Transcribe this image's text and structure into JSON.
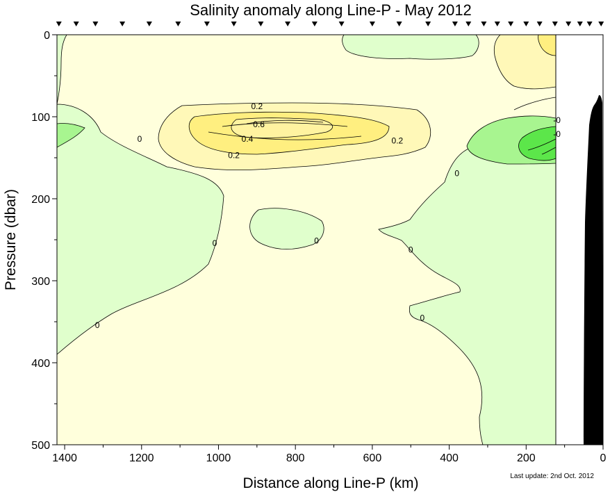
{
  "chart_data": {
    "type": "heatmap",
    "title": "Salinity anomaly along Line-P - May 2012",
    "xlabel": "Distance along Line-P (km)",
    "ylabel": "Pressure (dbar)",
    "footnote": "Last update: 2nd Oct. 2012",
    "xlim": [
      1420,
      0
    ],
    "ylim": [
      500,
      0
    ],
    "x_ticks": [
      1400,
      1200,
      1000,
      800,
      600,
      400,
      200,
      0
    ],
    "y_ticks": [
      0,
      100,
      200,
      300,
      400,
      500
    ],
    "stations_km": [
      1415,
      1370,
      1320,
      1250,
      1180,
      1105,
      1030,
      960,
      890,
      820,
      750,
      680,
      600,
      530,
      455,
      385,
      350,
      310,
      275,
      240,
      200,
      165,
      125,
      90,
      60,
      35,
      5
    ],
    "data_limit_km": 125,
    "colors": {
      "negative_low": "#e0ffcc",
      "negative_mid": "#a8f590",
      "negative_strong": "#5ce64a",
      "neutral": "#ffffdc",
      "positive_low": "#fff8b8",
      "positive_mid": "#ffef80",
      "bathymetry": "#000000",
      "outline": "#000000"
    },
    "contour_levels": [
      {
        "level": "-0",
        "position_km": 120,
        "position_dbar": 105
      },
      {
        "level": "-0",
        "position_km": 120,
        "position_dbar": 122
      },
      {
        "level": "0.2",
        "position_km": 900,
        "position_dbar": 88
      },
      {
        "level": "0.6",
        "position_km": 895,
        "position_dbar": 110
      },
      {
        "level": "0.4",
        "position_km": 925,
        "position_dbar": 128
      },
      {
        "level": "0.2",
        "position_km": 960,
        "position_dbar": 148
      },
      {
        "level": "0.2",
        "position_km": 535,
        "position_dbar": 130
      },
      {
        "level": "0",
        "position_km": 1205,
        "position_dbar": 128
      },
      {
        "level": "0",
        "position_km": 380,
        "position_dbar": 170
      },
      {
        "level": "0",
        "position_km": 1010,
        "position_dbar": 255
      },
      {
        "level": "0",
        "position_km": 745,
        "position_dbar": 252
      },
      {
        "level": "0",
        "position_km": 500,
        "position_dbar": 263
      },
      {
        "level": "0",
        "position_km": 1315,
        "position_dbar": 355
      },
      {
        "level": "0",
        "position_km": 470,
        "position_dbar": 346
      }
    ],
    "grid": false,
    "legend": "none"
  }
}
